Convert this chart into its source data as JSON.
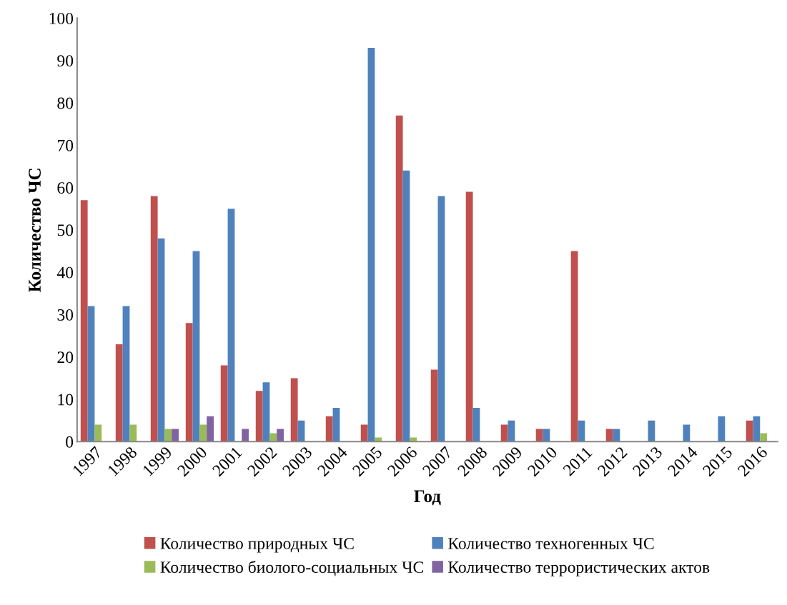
{
  "chart_data": {
    "type": "bar",
    "xlabel": "Год",
    "ylabel": "Количество ЧС",
    "categories": [
      "1997",
      "1998",
      "1999",
      "2000",
      "2001",
      "2002",
      "2003",
      "2004",
      "2005",
      "2006",
      "2007",
      "2008",
      "2009",
      "2010",
      "2011",
      "2012",
      "2013",
      "2014",
      "2015",
      "2016"
    ],
    "series": [
      {
        "name": "Количество природных ЧС",
        "color": "#c0504d",
        "values": [
          57,
          23,
          58,
          28,
          18,
          12,
          15,
          6,
          4,
          77,
          17,
          59,
          4,
          3,
          45,
          3,
          null,
          null,
          null,
          5
        ]
      },
      {
        "name": "Количество техногенных ЧС",
        "color": "#4f81bd",
        "values": [
          32,
          32,
          48,
          45,
          55,
          14,
          5,
          8,
          93,
          64,
          58,
          8,
          5,
          3,
          5,
          3,
          5,
          4,
          6,
          6
        ]
      },
      {
        "name": "Количество биолого-социальных ЧС",
        "color": "#9bbb59",
        "values": [
          4,
          4,
          3,
          4,
          null,
          2,
          null,
          null,
          1,
          1,
          null,
          null,
          null,
          null,
          null,
          null,
          null,
          null,
          null,
          2
        ]
      },
      {
        "name": "Количество террористических актов",
        "color": "#8064a2",
        "values": [
          null,
          null,
          3,
          6,
          3,
          3,
          null,
          null,
          null,
          null,
          null,
          null,
          null,
          null,
          null,
          null,
          null,
          null,
          null,
          null
        ]
      }
    ],
    "ylim": [
      0,
      100
    ],
    "yticks": [
      0,
      10,
      20,
      30,
      40,
      50,
      60,
      70,
      80,
      90,
      100
    ],
    "grid": false,
    "legend": "bottom"
  }
}
